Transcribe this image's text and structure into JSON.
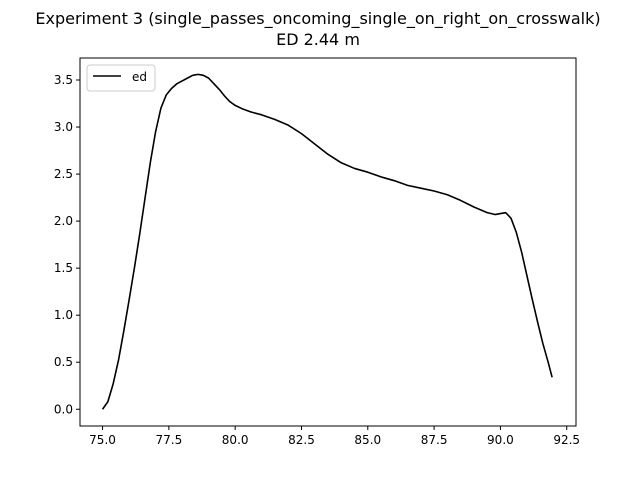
{
  "chart_data": {
    "type": "line",
    "title": "Experiment 3 (single_passes_oncoming_single_on_right_on_crosswalk)",
    "subtitle": "ED 2.44 m",
    "xlabel": "",
    "ylabel": "",
    "xlim": [
      74.15,
      92.85
    ],
    "ylim": [
      -0.178,
      3.734
    ],
    "xticks": [
      75.0,
      77.5,
      80.0,
      82.5,
      85.0,
      87.5,
      90.0,
      92.5
    ],
    "xtick_labels": [
      "75.0",
      "77.5",
      "80.0",
      "82.5",
      "85.0",
      "87.5",
      "90.0",
      "92.5"
    ],
    "yticks": [
      0.0,
      0.5,
      1.0,
      1.5,
      2.0,
      2.5,
      3.0,
      3.5
    ],
    "ytick_labels": [
      "0.0",
      "0.5",
      "1.0",
      "1.5",
      "2.0",
      "2.5",
      "3.0",
      "3.5"
    ],
    "grid": false,
    "legend": {
      "placement": "top-left",
      "entries": [
        "ed"
      ]
    },
    "series": [
      {
        "name": "ed",
        "color": "#000000",
        "x": [
          75.0,
          75.2,
          75.4,
          75.6,
          75.8,
          76.0,
          76.2,
          76.4,
          76.6,
          76.8,
          77.0,
          77.2,
          77.4,
          77.6,
          77.8,
          78.0,
          78.2,
          78.4,
          78.6,
          78.8,
          79.0,
          79.2,
          79.4,
          79.6,
          79.8,
          80.0,
          80.3,
          80.6,
          81.0,
          81.5,
          82.0,
          82.5,
          83.0,
          83.5,
          84.0,
          84.5,
          85.0,
          85.5,
          86.0,
          86.5,
          87.0,
          87.5,
          88.0,
          88.5,
          89.0,
          89.5,
          89.8,
          90.0,
          90.2,
          90.4,
          90.6,
          90.8,
          91.0,
          91.2,
          91.4,
          91.6,
          91.8,
          91.95
        ],
        "y": [
          0.0,
          0.08,
          0.27,
          0.52,
          0.83,
          1.16,
          1.5,
          1.86,
          2.24,
          2.62,
          2.95,
          3.2,
          3.34,
          3.41,
          3.46,
          3.49,
          3.52,
          3.55,
          3.56,
          3.55,
          3.52,
          3.46,
          3.4,
          3.33,
          3.27,
          3.23,
          3.19,
          3.16,
          3.13,
          3.08,
          3.02,
          2.93,
          2.82,
          2.71,
          2.62,
          2.56,
          2.52,
          2.47,
          2.43,
          2.38,
          2.35,
          2.32,
          2.28,
          2.22,
          2.15,
          2.09,
          2.07,
          2.08,
          2.09,
          2.03,
          1.88,
          1.67,
          1.42,
          1.17,
          0.93,
          0.7,
          0.5,
          0.34
        ]
      }
    ]
  }
}
